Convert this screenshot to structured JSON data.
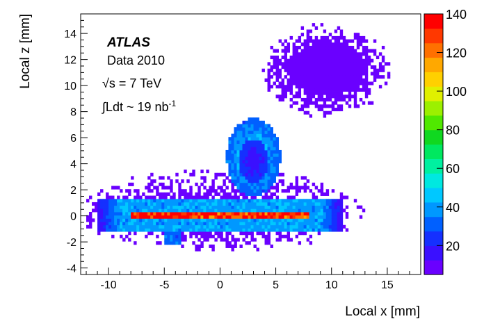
{
  "chart_data": {
    "type": "heatmap",
    "title": "",
    "xlabel": "Local x [mm]",
    "ylabel": "Local z [mm]",
    "xlim": [
      -12.5,
      18.0
    ],
    "ylim": [
      -4.5,
      15.5
    ],
    "x_ticks": [
      -10,
      -5,
      0,
      5,
      10,
      15
    ],
    "y_ticks": [
      -4,
      -2,
      0,
      2,
      4,
      6,
      8,
      10,
      12,
      14
    ],
    "colorbar": {
      "range": [
        5,
        140
      ],
      "ticks": [
        20,
        40,
        60,
        80,
        100,
        120,
        140
      ],
      "colors": [
        "#6a00ff",
        "#3a10ff",
        "#1530ff",
        "#0060ff",
        "#0098ff",
        "#00c8ff",
        "#00e8e0",
        "#00f0a0",
        "#00e860",
        "#10d820",
        "#50e800",
        "#9cf000",
        "#e0f000",
        "#ffd000",
        "#ffa800",
        "#ff7000",
        "#ff3800",
        "#ff0000"
      ]
    },
    "annotation": {
      "experiment": "ATLAS",
      "dataset": "Data 2010",
      "energy": "√s = 7 TeV",
      "luminosity": "∫Ldt ~ 19 nb",
      "luminosity_sup": "-1"
    },
    "regions": [
      {
        "shape": "bar",
        "x_range": [
          -8,
          8
        ],
        "z_range": [
          -0.25,
          0.25
        ],
        "value": 135
      },
      {
        "shape": "plateau",
        "x_range": [
          -11,
          11
        ],
        "z_range": [
          -1.2,
          1.2
        ],
        "value": 40
      },
      {
        "shape": "arch",
        "center": [
          3,
          4.5
        ],
        "radius": 2.3,
        "value": 45
      },
      {
        "shape": "hole",
        "center": [
          3,
          4.2
        ],
        "radius": 1.3,
        "value": 15
      },
      {
        "shape": "tab",
        "x_range": [
          -5,
          -3.5
        ],
        "z_range": [
          -2.2,
          -0.5
        ],
        "value": 40
      },
      {
        "shape": "cloud",
        "center": [
          9.5,
          11.2
        ],
        "spread": [
          4.5,
          2.8
        ],
        "value": 8
      }
    ]
  }
}
